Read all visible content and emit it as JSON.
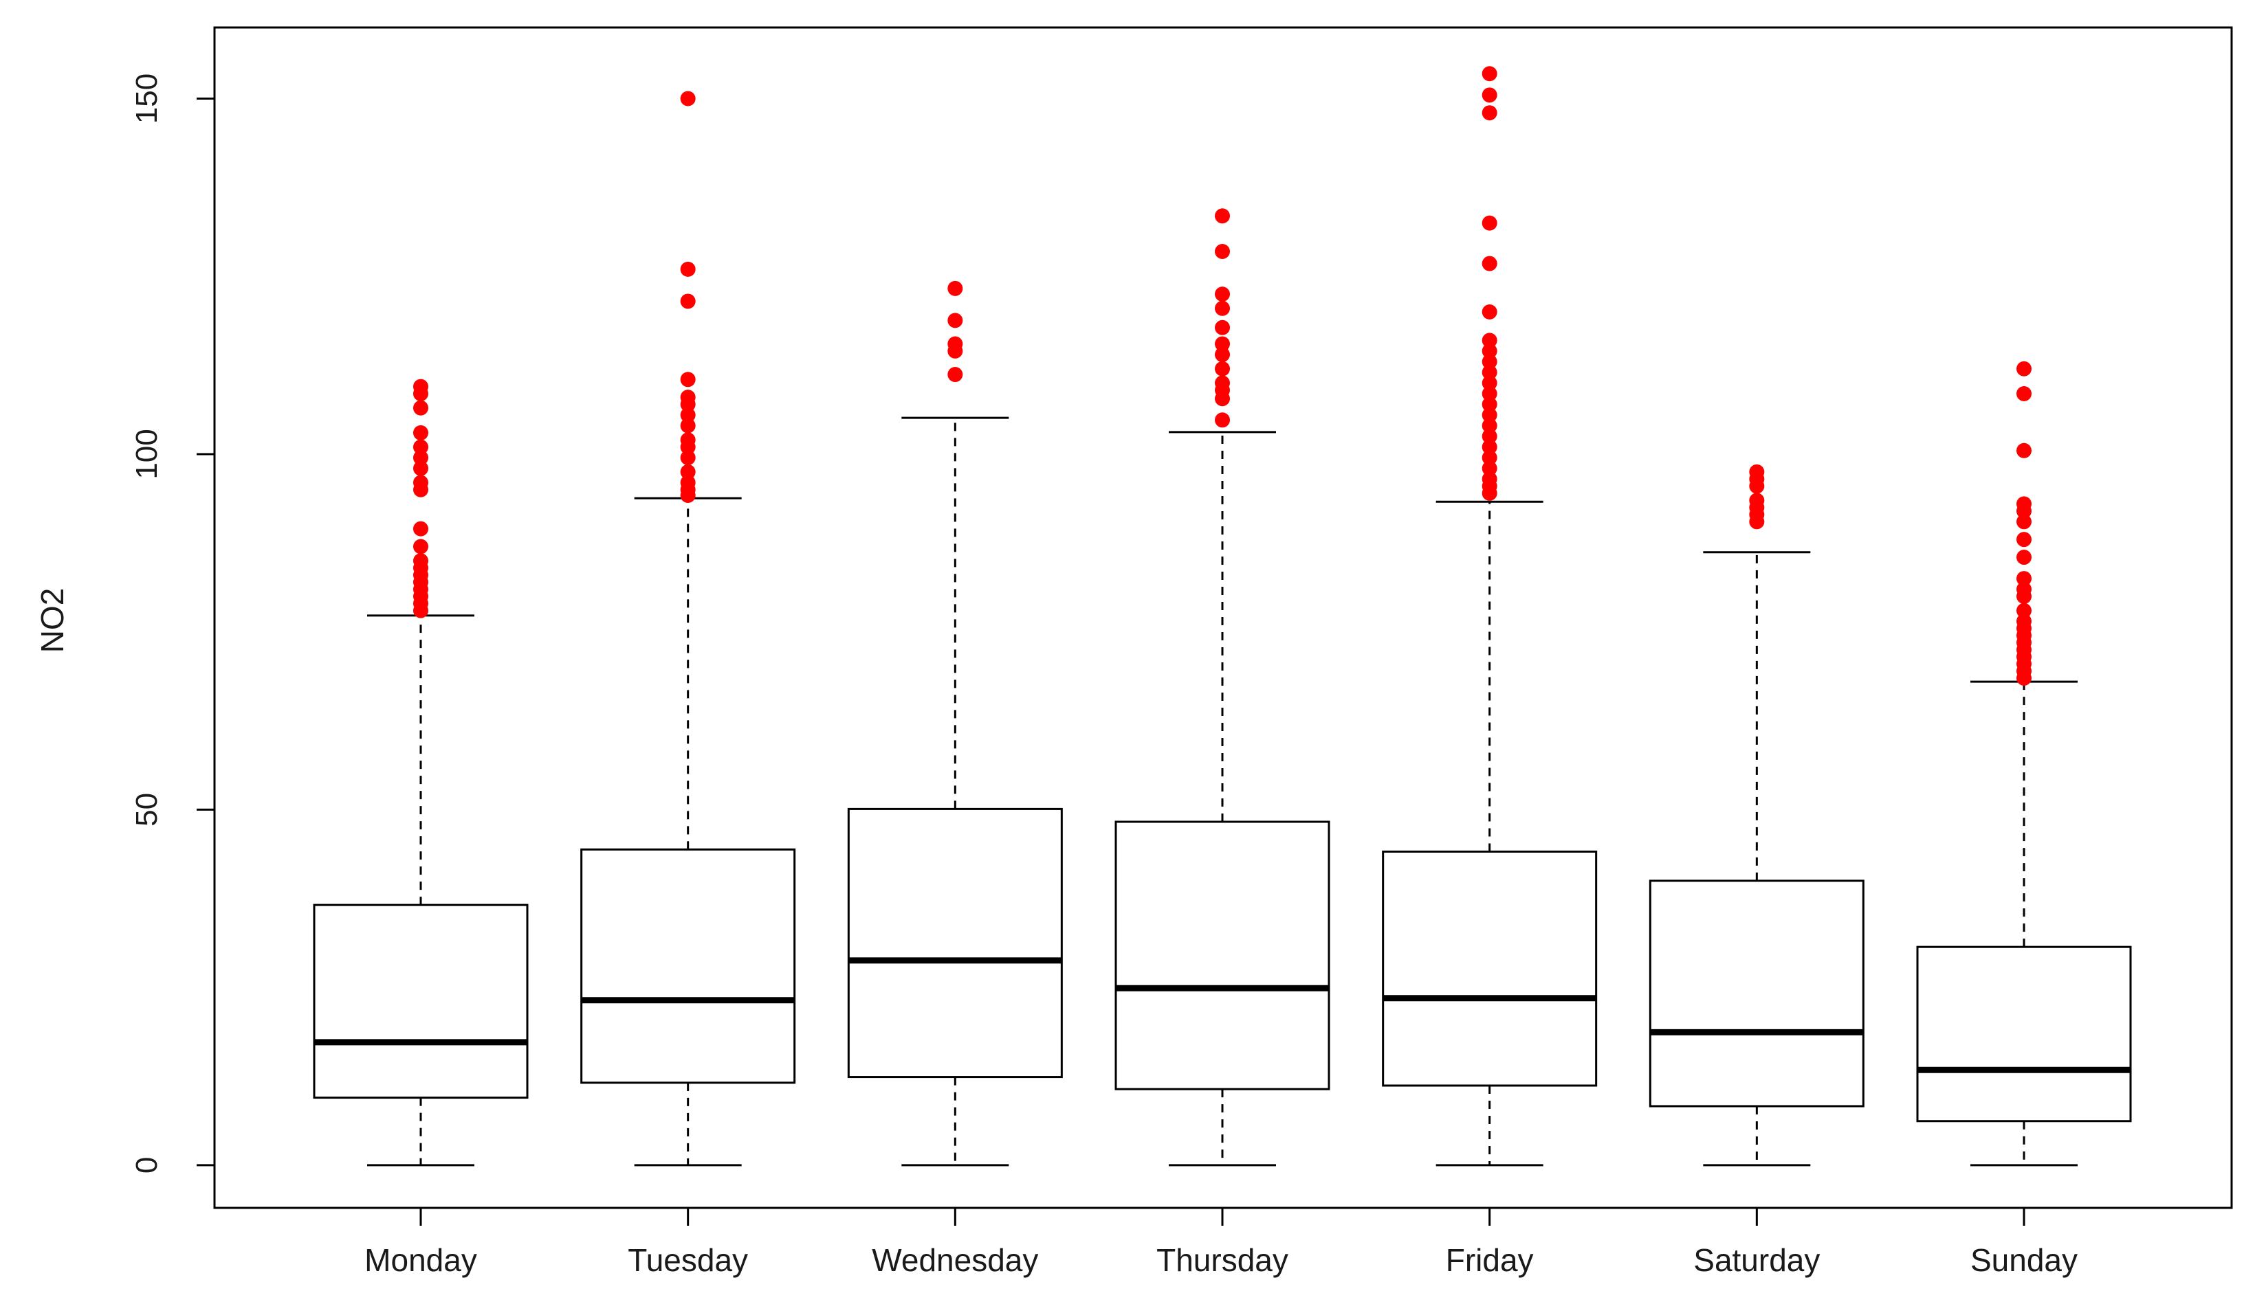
{
  "chart_data": {
    "type": "boxplot",
    "title": "",
    "xlabel": "",
    "ylabel": "NO2",
    "ylim": [
      -6,
      160
    ],
    "yticks": [
      0,
      50,
      100,
      150
    ],
    "ytick_labels": [
      "0",
      "50",
      "100",
      "150"
    ],
    "grid": false,
    "categories": [
      "Monday",
      "Tuesday",
      "Wednesday",
      "Thursday",
      "Friday",
      "Saturday",
      "Sunday"
    ],
    "boxes": [
      {
        "name": "Monday",
        "whisker_low": 0,
        "q1": 9.5,
        "median": 17.3,
        "q3": 36.6,
        "whisker_high": 77.3,
        "outliers": [
          78,
          79,
          80,
          81,
          82,
          83,
          84,
          85,
          87,
          89.5,
          95,
          96,
          98,
          99.5,
          101,
          103,
          106.5,
          108.5,
          109.5
        ]
      },
      {
        "name": "Tuesday",
        "whisker_low": 0,
        "q1": 11.6,
        "median": 23.2,
        "q3": 44.4,
        "whisker_high": 93.8,
        "outliers": [
          94.2,
          95,
          96,
          97.5,
          99.5,
          101,
          102,
          104,
          105.5,
          107,
          108,
          110.5,
          121.5,
          126,
          150
        ]
      },
      {
        "name": "Wednesday",
        "whisker_low": 0,
        "q1": 12.4,
        "median": 28.8,
        "q3": 50.1,
        "whisker_high": 105.1,
        "outliers": [
          111.2,
          114.5,
          115.5,
          118.8,
          123.3
        ]
      },
      {
        "name": "Thursday",
        "whisker_low": 0,
        "q1": 10.7,
        "median": 24.9,
        "q3": 48.3,
        "whisker_high": 103.1,
        "outliers": [
          104.8,
          107.8,
          109,
          110,
          112,
          114,
          115.5,
          117.8,
          120.5,
          122.5,
          128.5,
          133.5
        ]
      },
      {
        "name": "Friday",
        "whisker_low": 0,
        "q1": 11.2,
        "median": 23.5,
        "q3": 44.1,
        "whisker_high": 93.3,
        "outliers": [
          94.5,
          95.5,
          96.5,
          98,
          99.5,
          101,
          102.5,
          104,
          105.5,
          107,
          108.5,
          110,
          111.5,
          113,
          114.5,
          116,
          120,
          126.8,
          132.5,
          148,
          150.5,
          153.5
        ]
      },
      {
        "name": "Saturday",
        "whisker_low": 0,
        "q1": 8.3,
        "median": 18.7,
        "q3": 40.0,
        "whisker_high": 86.2,
        "outliers": [
          90.5,
          91.5,
          92.5,
          93.5,
          95.5,
          96.5,
          97.5
        ]
      },
      {
        "name": "Sunday",
        "whisker_low": 0,
        "q1": 6.2,
        "median": 13.4,
        "q3": 30.7,
        "whisker_high": 68.0,
        "outliers": [
          68.5,
          69.5,
          70.5,
          71.5,
          72.5,
          73.5,
          74.5,
          75.5,
          76.5,
          78,
          80,
          81,
          82.5,
          85.5,
          88,
          90.5,
          92,
          93,
          100.5,
          108.5,
          112
        ]
      }
    ],
    "colors": {
      "outlier": "#ff0000",
      "box_stroke": "#000000",
      "axis": "#000000",
      "background": "#ffffff"
    }
  }
}
